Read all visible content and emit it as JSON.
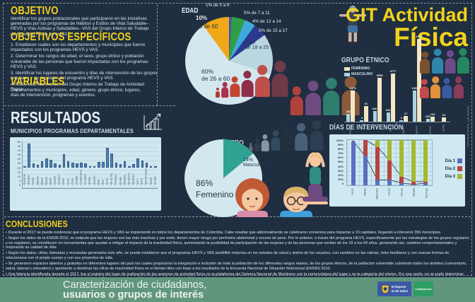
{
  "page": {
    "title_line1": "GIT Actividad",
    "title_line2": "Física",
    "credit_vertical": "Diseño GIT Comunicaciones",
    "colors": {
      "background": "#1f2e40",
      "accent_yellow": "#f3d21c",
      "panel_light_blue": "#cfe8f0",
      "footer_green": "#61967d",
      "femenino_bar": "#f3e6c3",
      "masculino_bar": "#a9d3e2",
      "municipios_bar_blue": "#4f81bd",
      "pie_pale_blue": "#cfe6ee",
      "pie_teal": "#2fa294",
      "pie_orange": "#f0a818"
    }
  },
  "sections": {
    "objetivo": {
      "title": "OBJETIVO",
      "body": "Identificar los grupos poblacionales que participaron en las iniciativas generadas por los programas de Hábitos y Estilos de Vida Saludable– HEVS y Vías Activas y Saludables– VAS del Grupo Interno de Trabajo de Actividad Física en el 2017."
    },
    "objetivos_especificos": {
      "title": "OBJETIVOS ESPECÍFICOS",
      "items": [
        "1. Establecer cuáles son los departamentos y municipios que fueron impactados con los programas HEVS y VAS.",
        "2. Determinar los rangos de edad, el sexo, grupo étnico y población vulnerable de las personas que fueron impactadas con los programas HEVS y VAS.",
        "3. Identificar los lugares de encuentro y días de intervención de los grupos regulares y no regulares del programa HEVS y VAS.",
        "4. Reconocer los eventos del Grupo Interno de Trabajo de Actividad Física."
      ]
    },
    "variables": {
      "title": "VARIABLES",
      "body": "Departamentos y municipios, edad, género, grupo étnico, lugares, días de intervención, programas y eventos."
    },
    "resultados": {
      "title": "RESULTADOS",
      "subtitle": "MUNICIPIOS PROGRAMAS DEPARTAMENTALES"
    },
    "conclusiones": {
      "title": "CONCLUSIONES",
      "bullets": [
        "Durante el 2017 se puede evidenciar que el programa HEVS y VAS se implementó en todos los departamentos de Colombia. Cabe resaltar que adicionalmente se celebraron convenios para impactar a 10 capitales, llegando a intervenir 356 municipios.",
        "Según los datos de la ENSIN 2010, se estipula que las mujeres son las más inactivas y por ende, tienen mayor riesgo por perímetro abdominal y exceso de peso. Por lo anterior, a través del programa HEVS, específicamente por las estrategias de los grupos regulares y no regulares, se constituyen en herramientas que ayudan a mitigar el impacto de la inactividad física, aumentando la posibilidad de participación de las mujeres y de las personas que oscilan de los 18 a los 64 años, generando así, cambios comportamentales y mejorando su calidad de vida.",
        "Según los datos, cifras, llamadas y encuestas generados este año, se puede establecer que el programas HEVS y VAS posibilitó mejorías en los estados de salud y ánimo de los usuarios, con cambios en las rutinas, roles familiares y con nuevas formas de relacionarse con el propio cuerpo y con sus proyectos de vida.",
        "Se generaron espacios abiertos y gratuitos en diferentes lugares del país los cuales propiciaron la integración e inclusión de toda la población de los diferentes rangos etarios, de los grupos étnicos, de la población vulnerable cubriendo todos los ámbitos (comunitario, salud, laboral y educativo) y aportando a disminuir las cifras de inactividad física en el tiempo libre con base a los resultados de la Encuesta Nacional de Situación Nutricional (ENSIN) 2010.",
        "Una falencia identificada durante el 2017, fue el registro del lugar de realización de las sesiones de actividad física en la plataforma del Sistema Nacional de Monitoreo con la nomenclatura del lugar y no la categoría del mismo. Por esa razón, no se pudo determinar cuántos grupos se intervinieron en parques, canchas, salones comunales, polideportivos, malocas, vías públicas, entre otros."
      ]
    },
    "footer": {
      "line1": "Caracterización de ciudadanos,",
      "line2": "usuarios o grupos de interés",
      "logo1_line1": "El deporte",
      "logo1_line2": "es de todos",
      "logo2": "Coldeportes"
    }
  },
  "edad_labels": {
    "p10": "10%",
    "r10": "Más de 60",
    "p15": "15%",
    "r15": "de 18 a 25",
    "p60": "60%",
    "r60": "de 26 a 60"
  },
  "genero_labels": {
    "masc_pct": "14%",
    "masc": "Masculino",
    "fem_pct": "86%",
    "fem": "Femenino"
  },
  "chart_data": [
    {
      "id": "edad",
      "type": "pie",
      "title": "EDAD",
      "slices": [
        {
          "label": "1% de 0 a 6",
          "pct": 1,
          "color": "#3f51b5"
        },
        {
          "label": "5% de 7 a 11",
          "pct": 5,
          "color": "#2e9e46"
        },
        {
          "label": "4% de 12 a 14",
          "pct": 4,
          "color": "#3fa9dc"
        },
        {
          "label": "5% de 15 a 17",
          "pct": 5,
          "color": "#2b3a8f"
        },
        {
          "label": "15% de 18 a 25",
          "pct": 15,
          "color": "#b9d6e1"
        },
        {
          "label": "60% de 26 a 60",
          "pct": 60,
          "color": "#d3e7ee"
        },
        {
          "label": "10% Más de 60",
          "pct": 10,
          "color": "#f0a818"
        }
      ]
    },
    {
      "id": "municipios",
      "type": "bar",
      "title": "MUNICIPIOS PROGRAMAS DEPARTAMENTALES",
      "ylim": [
        0,
        50
      ],
      "yticks": [
        0,
        5,
        10,
        15,
        20,
        25,
        30,
        35,
        40,
        45,
        50
      ],
      "categories": [
        "Amazonas",
        "Antioquia",
        "Arauca",
        "Atlántico",
        "Bolívar",
        "Boyacá",
        "Caldas",
        "Caquetá",
        "Casanare",
        "Cauca",
        "Cesar",
        "Chocó",
        "Córdoba",
        "Cundinamarca",
        "La Guajira",
        "Guainía",
        "Guaviare",
        "Huila",
        "Meta",
        "Nariño",
        "Nte de San.",
        "Putumayo",
        "Quindío",
        "Risaralda",
        "San Andrés",
        "Santander",
        "Sucre",
        "Tolima",
        "Valle del Cauca",
        "Vaupés",
        "Vichada"
      ],
      "values": [
        1,
        46,
        8,
        5,
        12,
        17,
        15,
        8,
        6,
        26,
        12,
        9,
        8,
        9,
        8,
        1,
        1,
        11,
        11,
        38,
        27,
        10,
        7,
        12,
        1,
        7,
        17,
        14,
        9,
        1,
        1
      ]
    },
    {
      "id": "grupo_etnico",
      "type": "bar",
      "title": "GRUPO ÉTNICO",
      "categories": [
        "Indígena",
        "Rom",
        "Afro",
        "Raizal",
        "Palenquero",
        "Campesino",
        "Dis. Intelectual",
        "LGTBI"
      ],
      "series": [
        {
          "name": "MASCULINO",
          "color": "#a9d3e2",
          "values": [
            382,
            4,
            640,
            433,
            0,
            1920,
            105,
            null
          ]
        },
        {
          "name": "FEMENINO",
          "color": "#f3e6c3",
          "values": [
            1573,
            51,
            3659,
            3777,
            17,
            1035,
            133,
            62
          ]
        }
      ],
      "display_heights": {
        "masculino": [
          11,
          2,
          15,
          13,
          2,
          44,
          4,
          0
        ],
        "femenino": [
          44,
          22,
          62,
          68,
          8,
          117,
          7,
          6
        ]
      }
    },
    {
      "id": "genero",
      "type": "pie",
      "title": "GÉNERO",
      "slices": [
        {
          "label": "14% Masculino",
          "pct": 14,
          "color": "#2fa294"
        },
        {
          "label": "86% Femenino",
          "pct": 86,
          "color": "#d3e7ee"
        }
      ]
    },
    {
      "id": "dias",
      "type": "combo-bar-line",
      "title": "DÍAS DE INTERVENCIÓN",
      "categories": [
        "Lunes",
        "Martes",
        "Miércoles",
        "Jueves",
        "Viernes",
        "Sábado",
        "Domingo"
      ],
      "yticks": [
        "0",
        "10%",
        "20%",
        "30%",
        "40%",
        "50%",
        "60%",
        "70%",
        "80%",
        "90%",
        "100%"
      ],
      "ylim": [
        0,
        100
      ],
      "series": [
        {
          "name": "Día 1",
          "color": "#5b6fc0",
          "values": [
            97,
            65,
            12,
            12,
            5,
            2,
            5
          ]
        },
        {
          "name": "Día 2",
          "color": "#b8433e",
          "values": [
            null,
            100,
            85,
            55,
            18,
            8,
            8
          ]
        },
        {
          "name": "Día 3",
          "color": "#a4b92d",
          "values": [
            null,
            null,
            100,
            100,
            100,
            100,
            100
          ]
        }
      ],
      "legend_position": "right"
    }
  ]
}
